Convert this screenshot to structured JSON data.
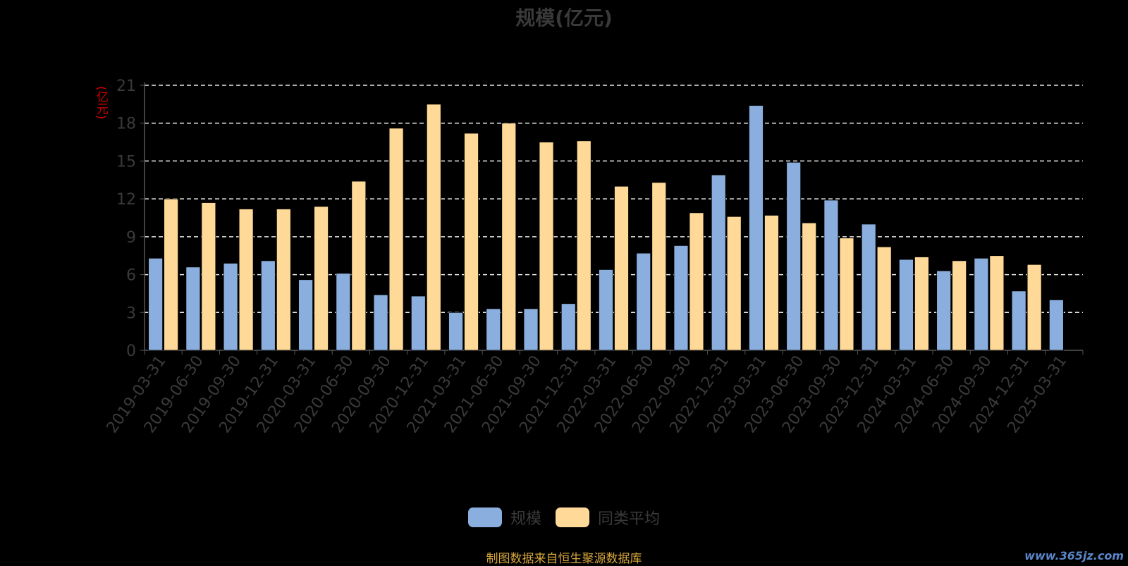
{
  "chart_data": {
    "type": "bar",
    "title": "规模(亿元)",
    "y_unit_label": "(亿元)",
    "ylim": [
      0,
      21
    ],
    "y_ticks": [
      0,
      3,
      6,
      9,
      12,
      15,
      18,
      21
    ],
    "grid": true,
    "legend_position": "bottom-center",
    "categories": [
      "2019-03-31",
      "2019-06-30",
      "2019-09-30",
      "2019-12-31",
      "2020-03-31",
      "2020-06-30",
      "2020-09-30",
      "2020-12-31",
      "2021-03-31",
      "2021-06-30",
      "2021-09-30",
      "2021-12-31",
      "2022-03-31",
      "2022-06-30",
      "2022-09-30",
      "2022-12-31",
      "2023-03-31",
      "2023-06-30",
      "2023-09-30",
      "2023-12-31",
      "2024-03-31",
      "2024-06-30",
      "2024-09-30",
      "2024-12-31",
      "2025-03-31"
    ],
    "series": [
      {
        "name": "规模",
        "color": "#8aaedd",
        "values": [
          7.3,
          6.6,
          6.9,
          7.1,
          5.6,
          6.1,
          4.4,
          4.3,
          3.0,
          3.3,
          3.3,
          3.7,
          6.4,
          7.7,
          8.3,
          13.9,
          19.4,
          14.9,
          11.9,
          10.0,
          7.2,
          6.3,
          7.3,
          4.7,
          4.0
        ]
      },
      {
        "name": "同类平均",
        "color": "#ffd998",
        "values": [
          12.0,
          11.7,
          11.2,
          11.2,
          11.4,
          13.4,
          17.6,
          19.5,
          17.2,
          18.0,
          16.5,
          16.6,
          13.0,
          13.3,
          10.9,
          10.6,
          10.7,
          10.1,
          8.9,
          8.2,
          7.4,
          7.1,
          7.5,
          6.8,
          null
        ]
      }
    ]
  },
  "source_note": "制图数据来自恒生聚源数据库",
  "watermark": "www.365jz.com"
}
